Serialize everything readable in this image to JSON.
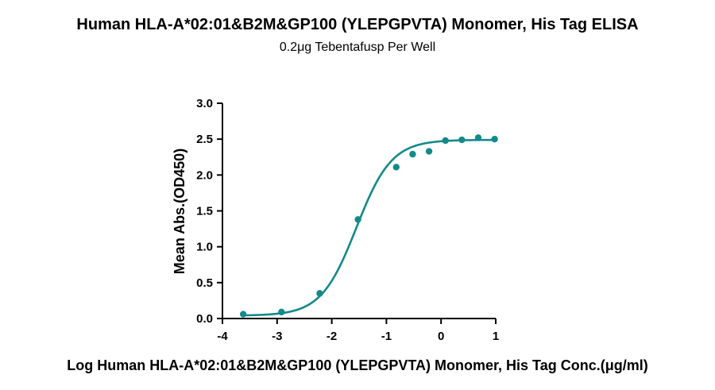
{
  "chart_data": {
    "type": "scatter",
    "title": "Human HLA-A*02:01&B2M&GP100 (YLEPGPVTA) Monomer, His Tag ELISA",
    "subtitle": "0.2μg Tebentafusp Per Well",
    "xlabel": "Log Human HLA-A*02:01&B2M&GP100 (YLEPGPVTA) Monomer, His Tag Conc.(μg/ml)",
    "ylabel": "Mean Abs.(OD450)",
    "xlim": [
      -4,
      1
    ],
    "ylim": [
      0,
      3.0
    ],
    "xticks": [
      "-4",
      "-3",
      "-2",
      "-1",
      "0",
      "1"
    ],
    "yticks": [
      "0.0",
      "0.5",
      "1.0",
      "1.5",
      "2.0",
      "2.5",
      "3.0"
    ],
    "grid": false,
    "series": [
      {
        "x": [
          -3.62,
          -2.92,
          -2.22,
          -1.52,
          -0.82,
          -0.52,
          -0.22,
          0.08,
          0.38,
          0.68,
          0.98
        ],
        "y": [
          0.06,
          0.09,
          0.35,
          1.38,
          2.11,
          2.29,
          2.33,
          2.48,
          2.49,
          2.52,
          2.5
        ],
        "color": "#138a89"
      }
    ],
    "fit_curve": {
      "model": "4PL",
      "bottom": 0.04,
      "top": 2.49,
      "logEC50": -1.55,
      "hill": 1.35,
      "color": "#138a89"
    }
  }
}
